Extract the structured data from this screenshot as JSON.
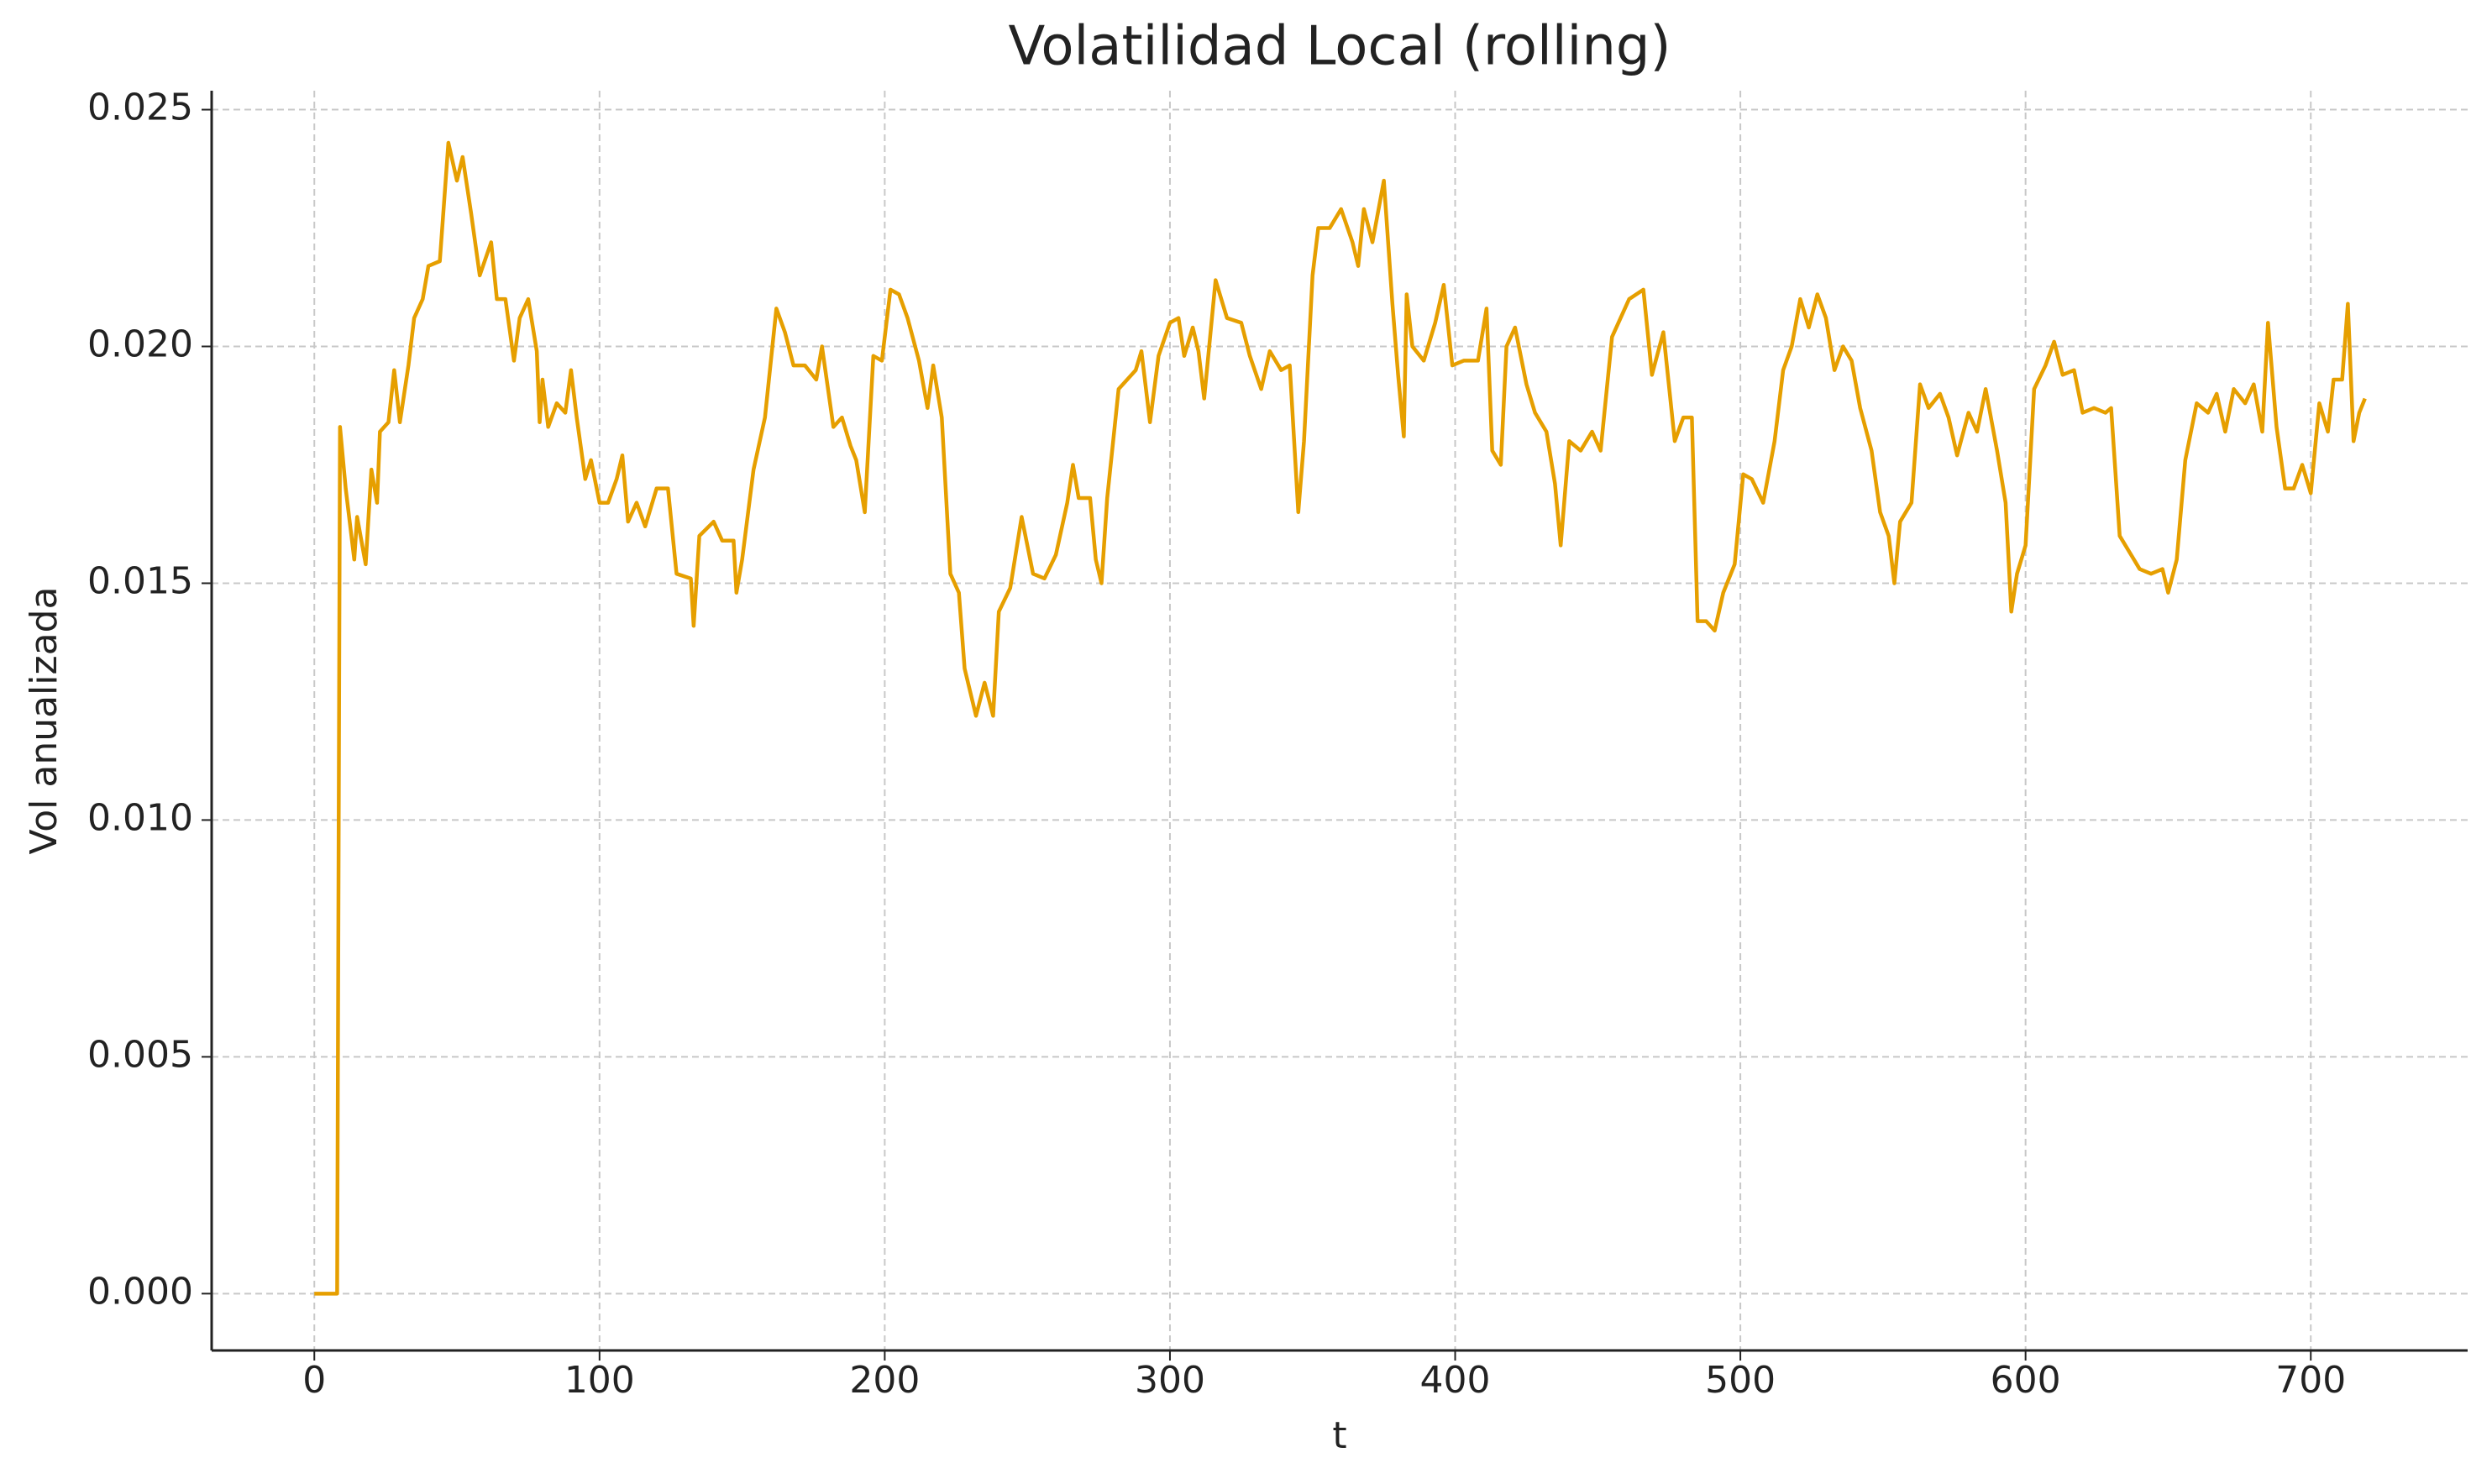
{
  "chart_data": {
    "type": "line",
    "title": "Volatilidad Local (rolling)",
    "x_label": "t",
    "y_label": "Vol anualizada",
    "color": "#e69f00",
    "grid": true,
    "xlim": [
      -36,
      755
    ],
    "ylim": [
      -0.0012,
      0.0254
    ],
    "xticks": [
      0,
      100,
      200,
      300,
      400,
      500,
      600,
      700
    ],
    "yticks": [
      {
        "value": 0,
        "label": "0.000"
      },
      {
        "value": 0.005,
        "label": "0.005"
      },
      {
        "value": 0.01,
        "label": "0.010"
      },
      {
        "value": 0.015,
        "label": "0.015"
      },
      {
        "value": 0.02,
        "label": "0.020"
      },
      {
        "value": 0.025,
        "label": "0.025"
      }
    ],
    "x": [
      0,
      8,
      9,
      11,
      14,
      15,
      18,
      20,
      22,
      23,
      26,
      28,
      30,
      33,
      35,
      38,
      40,
      44,
      47,
      50,
      52,
      55,
      58,
      62,
      64,
      67,
      70,
      72,
      75,
      78,
      79,
      80,
      82,
      85,
      88,
      90,
      92,
      95,
      97,
      100,
      103,
      106,
      108,
      110,
      113,
      116,
      120,
      124,
      127,
      132,
      133,
      135,
      140,
      143,
      147,
      148,
      150,
      154,
      158,
      162,
      165,
      168,
      172,
      176,
      178,
      182,
      185,
      188,
      190,
      193,
      196,
      199,
      202,
      205,
      208,
      212,
      215,
      217,
      220,
      223,
      226,
      228,
      232,
      235,
      238,
      240,
      244,
      248,
      252,
      256,
      260,
      264,
      266,
      268,
      272,
      274,
      276,
      278,
      282,
      285,
      288,
      290,
      293,
      296,
      300,
      303,
      305,
      308,
      310,
      312,
      316,
      320,
      325,
      328,
      332,
      335,
      339,
      342,
      345,
      347,
      350,
      352,
      356,
      360,
      364,
      366,
      368,
      371,
      375,
      378,
      380,
      382,
      383,
      385,
      389,
      393,
      396,
      399,
      403,
      408,
      411,
      413,
      416,
      418,
      421,
      425,
      428,
      432,
      435,
      437,
      440,
      444,
      448,
      451,
      455,
      458,
      461,
      466,
      469,
      473,
      477,
      480,
      483,
      485,
      488,
      491,
      494,
      498,
      501,
      504,
      508,
      512,
      515,
      518,
      521,
      524,
      527,
      530,
      533,
      536,
      539,
      542,
      546,
      549,
      552,
      554,
      556,
      560,
      563,
      566,
      570,
      573,
      576,
      580,
      583,
      586,
      590,
      593,
      595,
      597,
      600,
      603,
      607,
      610,
      613,
      617,
      620,
      624,
      628,
      630,
      633,
      637,
      640,
      644,
      648,
      650,
      653,
      656,
      660,
      664,
      667,
      670,
      673,
      677,
      680,
      683,
      685,
      688,
      691,
      694,
      697,
      700,
      703,
      706,
      708,
      711,
      713,
      715,
      717,
      719
    ],
    "values": [
      0,
      0,
      0.0183,
      0.017,
      0.0155,
      0.0164,
      0.0154,
      0.0174,
      0.0167,
      0.0182,
      0.0184,
      0.0195,
      0.0184,
      0.0196,
      0.0206,
      0.021,
      0.0217,
      0.0218,
      0.0243,
      0.0235,
      0.024,
      0.0228,
      0.0215,
      0.0222,
      0.021,
      0.021,
      0.0197,
      0.0206,
      0.021,
      0.0199,
      0.0184,
      0.0193,
      0.0183,
      0.0188,
      0.0186,
      0.0195,
      0.0185,
      0.0172,
      0.0176,
      0.0167,
      0.0167,
      0.0172,
      0.0177,
      0.0163,
      0.0167,
      0.0162,
      0.017,
      0.017,
      0.0152,
      0.0151,
      0.0141,
      0.016,
      0.0163,
      0.0159,
      0.0159,
      0.0148,
      0.0155,
      0.0174,
      0.0185,
      0.0208,
      0.0203,
      0.0196,
      0.0196,
      0.0193,
      0.02,
      0.0183,
      0.0185,
      0.0179,
      0.0176,
      0.0165,
      0.0198,
      0.0197,
      0.0212,
      0.0211,
      0.0206,
      0.0197,
      0.0187,
      0.0196,
      0.0185,
      0.0152,
      0.0148,
      0.0132,
      0.0122,
      0.0129,
      0.0122,
      0.0144,
      0.0149,
      0.0164,
      0.0152,
      0.0151,
      0.0156,
      0.0167,
      0.0175,
      0.0168,
      0.0168,
      0.0155,
      0.015,
      0.0168,
      0.0191,
      0.0193,
      0.0195,
      0.0199,
      0.0184,
      0.0198,
      0.0205,
      0.0206,
      0.0198,
      0.0204,
      0.0199,
      0.0189,
      0.0214,
      0.0206,
      0.0205,
      0.0198,
      0.0191,
      0.0199,
      0.0195,
      0.0196,
      0.0165,
      0.018,
      0.0215,
      0.0225,
      0.0225,
      0.0229,
      0.0222,
      0.0217,
      0.0229,
      0.0222,
      0.0235,
      0.0209,
      0.0194,
      0.0181,
      0.0211,
      0.02,
      0.0197,
      0.0205,
      0.0213,
      0.0196,
      0.0197,
      0.0197,
      0.0208,
      0.0178,
      0.0175,
      0.02,
      0.0204,
      0.0192,
      0.0186,
      0.0182,
      0.0171,
      0.0158,
      0.018,
      0.0178,
      0.0182,
      0.0178,
      0.0202,
      0.0206,
      0.021,
      0.0212,
      0.0194,
      0.0203,
      0.018,
      0.0185,
      0.0185,
      0.0142,
      0.0142,
      0.014,
      0.0148,
      0.0154,
      0.0173,
      0.0172,
      0.0167,
      0.018,
      0.0195,
      0.02,
      0.021,
      0.0204,
      0.0211,
      0.0206,
      0.0195,
      0.02,
      0.0197,
      0.0187,
      0.0178,
      0.0165,
      0.016,
      0.015,
      0.0163,
      0.0167,
      0.0192,
      0.0187,
      0.019,
      0.0185,
      0.0177,
      0.0186,
      0.0182,
      0.0191,
      0.0178,
      0.0167,
      0.0144,
      0.0152,
      0.0158,
      0.0191,
      0.0196,
      0.0201,
      0.0194,
      0.0195,
      0.0186,
      0.0187,
      0.0186,
      0.0187,
      0.016,
      0.0156,
      0.0153,
      0.0152,
      0.0153,
      0.0148,
      0.0155,
      0.0176,
      0.0188,
      0.0186,
      0.019,
      0.0182,
      0.0191,
      0.0188,
      0.0192,
      0.0182,
      0.0205,
      0.0183,
      0.017,
      0.017,
      0.0175,
      0.0169,
      0.0188,
      0.0182,
      0.0193,
      0.0193,
      0.0209,
      0.018,
      0.0186,
      0.0189
    ]
  }
}
